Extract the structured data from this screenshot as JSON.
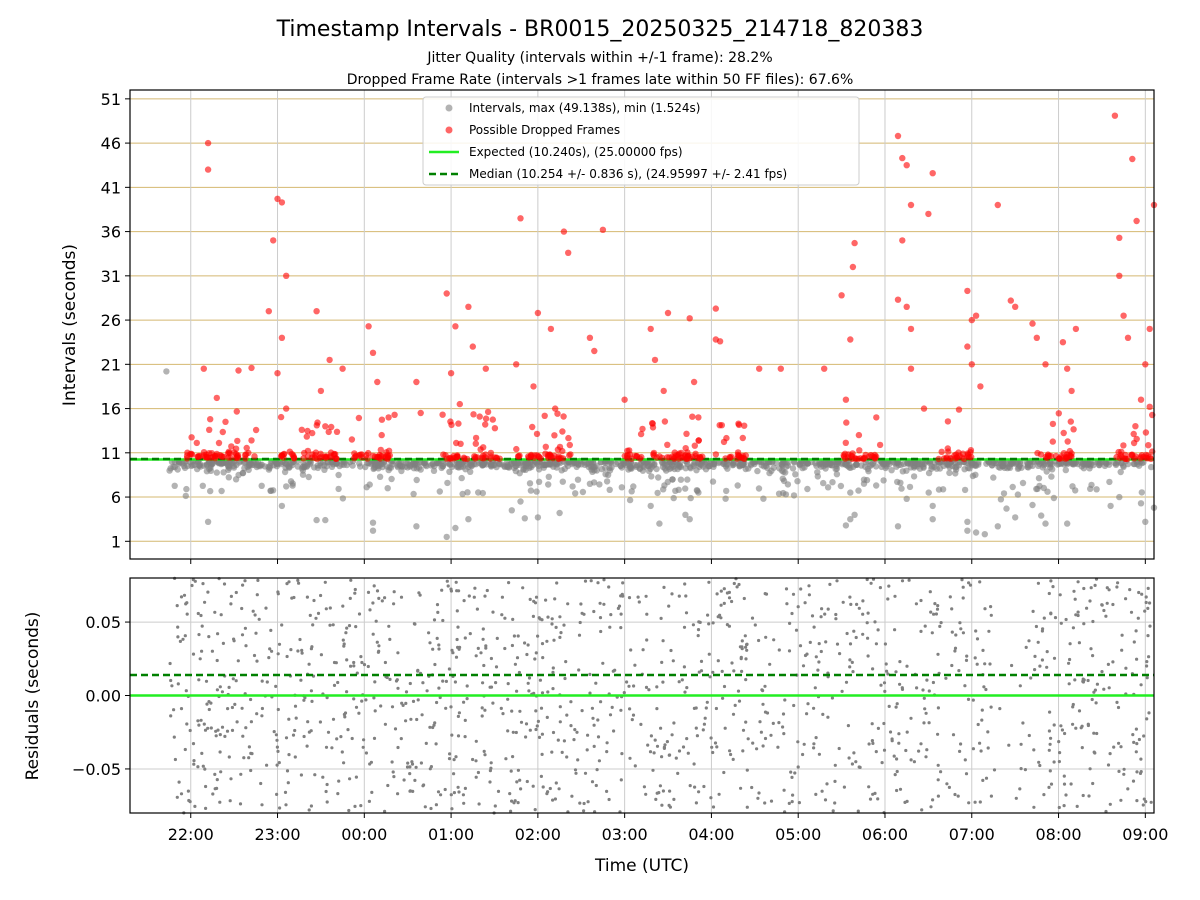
{
  "figure": {
    "title": "Timestamp Intervals - BR0015_20250325_214718_820383",
    "subtitle1": "Jitter Quality (intervals within +/-1 frame): 28.2%",
    "subtitle2": "Dropped Frame Rate (intervals >1 frames late within 50 FF files): 67.6%"
  },
  "colors": {
    "intervals": "#808080",
    "dropped": "#ff0000",
    "expected": "#22ee22",
    "median": "#008000",
    "hgrid": "#d4b870",
    "vgrid": "#cccccc"
  },
  "chart_data": [
    {
      "type": "scatter",
      "ylabel": "Intervals (seconds)",
      "ylim": [
        -1,
        52
      ],
      "yticks": [
        1,
        6,
        11,
        16,
        21,
        26,
        31,
        36,
        41,
        46,
        51
      ],
      "xlim_hours": [
        21.3,
        33.1
      ],
      "legend_position": "top-center",
      "legend": [
        "Intervals, max (49.138s), min (1.524s)",
        "Possible Dropped Frames",
        "Expected (10.240s), (25.00000 fps)",
        "Median (10.254 +/- 0.836 s), (24.95997 +/- 2.41 fps)"
      ],
      "expected_interval": 10.24,
      "median_interval": 10.254,
      "baseline_x_hours": [
        21.72,
        33.08
      ],
      "dropped_baseline_segments": [
        [
          21.95,
          22.8
        ],
        [
          23.0,
          23.7
        ],
        [
          23.85,
          24.35
        ],
        [
          24.9,
          25.6
        ],
        [
          25.75,
          26.4
        ],
        [
          27.0,
          27.9
        ],
        [
          28.05,
          28.4
        ],
        [
          29.5,
          29.95
        ],
        [
          30.6,
          31.0
        ],
        [
          31.75,
          32.2
        ],
        [
          32.6,
          33.08
        ]
      ],
      "dropped_outliers": [
        [
          22.2,
          46.0
        ],
        [
          22.2,
          43.0
        ],
        [
          22.15,
          20.5
        ],
        [
          22.3,
          17.2
        ],
        [
          22.4,
          14.5
        ],
        [
          22.55,
          20.3
        ],
        [
          22.7,
          20.6
        ],
        [
          22.9,
          27.0
        ],
        [
          22.95,
          35.0
        ],
        [
          23.0,
          39.7
        ],
        [
          23.05,
          39.3
        ],
        [
          23.1,
          31.0
        ],
        [
          23.05,
          24.0
        ],
        [
          23.0,
          20.0
        ],
        [
          23.1,
          16.0
        ],
        [
          23.45,
          27.0
        ],
        [
          23.5,
          18.0
        ],
        [
          23.6,
          21.5
        ],
        [
          23.55,
          14.0
        ],
        [
          23.75,
          20.5
        ],
        [
          24.05,
          25.3
        ],
        [
          24.1,
          22.3
        ],
        [
          24.15,
          19.0
        ],
        [
          24.2,
          13.0
        ],
        [
          24.6,
          19.0
        ],
        [
          24.65,
          15.5
        ],
        [
          24.95,
          29.0
        ],
        [
          25.05,
          25.3
        ],
        [
          25.0,
          20.0
        ],
        [
          25.2,
          27.5
        ],
        [
          25.25,
          23.0
        ],
        [
          25.1,
          16.5
        ],
        [
          25.4,
          20.5
        ],
        [
          25.75,
          21.0
        ],
        [
          25.8,
          37.5
        ],
        [
          25.95,
          18.5
        ],
        [
          26.0,
          26.8
        ],
        [
          26.15,
          25.0
        ],
        [
          26.2,
          16.0
        ],
        [
          26.3,
          36.0
        ],
        [
          26.35,
          33.6
        ],
        [
          26.6,
          24.0
        ],
        [
          26.65,
          22.5
        ],
        [
          26.75,
          36.2
        ],
        [
          27.0,
          17.0
        ],
        [
          27.3,
          25.0
        ],
        [
          27.35,
          21.5
        ],
        [
          27.45,
          18.0
        ],
        [
          27.5,
          26.8
        ],
        [
          27.75,
          26.2
        ],
        [
          27.8,
          19.0
        ],
        [
          27.85,
          15.0
        ],
        [
          28.05,
          23.8
        ],
        [
          28.1,
          23.6
        ],
        [
          28.05,
          27.3
        ],
        [
          28.55,
          20.5
        ],
        [
          28.8,
          20.5
        ],
        [
          29.3,
          20.5
        ],
        [
          29.5,
          28.8
        ],
        [
          29.6,
          23.8
        ],
        [
          29.65,
          34.7
        ],
        [
          29.63,
          32.0
        ],
        [
          29.55,
          17.0
        ],
        [
          29.7,
          13.0
        ],
        [
          30.15,
          46.8
        ],
        [
          30.2,
          44.3
        ],
        [
          30.25,
          43.5
        ],
        [
          30.3,
          39.0
        ],
        [
          30.2,
          35.0
        ],
        [
          30.15,
          28.3
        ],
        [
          30.25,
          27.5
        ],
        [
          30.3,
          25.0
        ],
        [
          30.3,
          20.5
        ],
        [
          30.5,
          38.0
        ],
        [
          30.55,
          42.6
        ],
        [
          30.45,
          16.0
        ],
        [
          30.95,
          29.3
        ],
        [
          31.0,
          26.0
        ],
        [
          31.05,
          26.5
        ],
        [
          30.95,
          23.0
        ],
        [
          31.0,
          21.0
        ],
        [
          31.1,
          18.5
        ],
        [
          31.3,
          39.0
        ],
        [
          31.45,
          28.2
        ],
        [
          31.5,
          27.5
        ],
        [
          31.7,
          25.6
        ],
        [
          31.75,
          24.0
        ],
        [
          31.85,
          21.0
        ],
        [
          32.2,
          25.0
        ],
        [
          32.05,
          23.5
        ],
        [
          32.1,
          20.5
        ],
        [
          32.15,
          18.0
        ],
        [
          32.65,
          49.1
        ],
        [
          32.7,
          35.3
        ],
        [
          32.75,
          26.5
        ],
        [
          32.8,
          24.0
        ],
        [
          32.85,
          44.2
        ],
        [
          32.9,
          37.2
        ],
        [
          32.7,
          31.0
        ],
        [
          33.0,
          21.0
        ],
        [
          33.05,
          25.0
        ],
        [
          33.1,
          39.0
        ],
        [
          32.95,
          17.0
        ],
        [
          33.05,
          16.2
        ]
      ],
      "interval_outliers": [
        [
          21.72,
          20.2
        ],
        [
          22.2,
          3.2
        ],
        [
          23.05,
          5.0
        ],
        [
          23.1,
          7.2
        ],
        [
          23.45,
          3.4
        ],
        [
          23.55,
          3.4
        ],
        [
          24.1,
          3.1
        ],
        [
          24.1,
          2.2
        ],
        [
          24.6,
          2.7
        ],
        [
          24.95,
          1.5
        ],
        [
          25.05,
          2.5
        ],
        [
          25.2,
          3.5
        ],
        [
          25.7,
          4.5
        ],
        [
          25.8,
          5.5
        ],
        [
          25.85,
          3.6
        ],
        [
          26.0,
          3.7
        ],
        [
          26.25,
          4.2
        ],
        [
          26.4,
          7.2
        ],
        [
          26.6,
          7.5
        ],
        [
          27.3,
          5.0
        ],
        [
          27.4,
          3.0
        ],
        [
          27.55,
          8.0
        ],
        [
          27.7,
          4.0
        ],
        [
          27.75,
          3.5
        ],
        [
          27.85,
          6.5
        ],
        [
          29.55,
          2.8
        ],
        [
          29.6,
          3.5
        ],
        [
          29.65,
          4.0
        ],
        [
          29.6,
          6.5
        ],
        [
          30.15,
          2.7
        ],
        [
          30.25,
          5.8
        ],
        [
          30.55,
          5.0
        ],
        [
          30.55,
          3.5
        ],
        [
          30.95,
          3.2
        ],
        [
          30.95,
          2.2
        ],
        [
          31.05,
          2.0
        ],
        [
          31.15,
          1.8
        ],
        [
          31.3,
          2.7
        ],
        [
          31.4,
          4.7
        ],
        [
          31.5,
          3.7
        ],
        [
          31.7,
          5.1
        ],
        [
          31.8,
          3.9
        ],
        [
          31.85,
          3.0
        ],
        [
          32.1,
          3.0
        ],
        [
          32.6,
          5.0
        ],
        [
          32.7,
          6.0
        ],
        [
          32.95,
          5.3
        ],
        [
          33.0,
          3.2
        ],
        [
          33.1,
          4.8
        ]
      ],
      "xticks": [
        "22:00",
        "23:00",
        "00:00",
        "01:00",
        "02:00",
        "03:00",
        "04:00",
        "05:00",
        "06:00",
        "07:00",
        "08:00",
        "09:00"
      ],
      "xtick_hours": [
        22,
        23,
        24,
        25,
        26,
        27,
        28,
        29,
        30,
        31,
        32,
        33
      ]
    },
    {
      "type": "scatter",
      "ylabel": "Residuals (seconds)",
      "xlabel": "Time (UTC)",
      "ylim": [
        -0.08,
        0.08
      ],
      "yticks": [
        "−0.05",
        "0.00",
        "0.05"
      ],
      "ytick_values": [
        -0.05,
        0.0,
        0.05
      ],
      "expected_residual": 0.0,
      "median_residual": 0.014,
      "sparse_gaps_hours": [
        [
          31.25,
          31.55
        ]
      ],
      "point_count": 1400
    }
  ]
}
